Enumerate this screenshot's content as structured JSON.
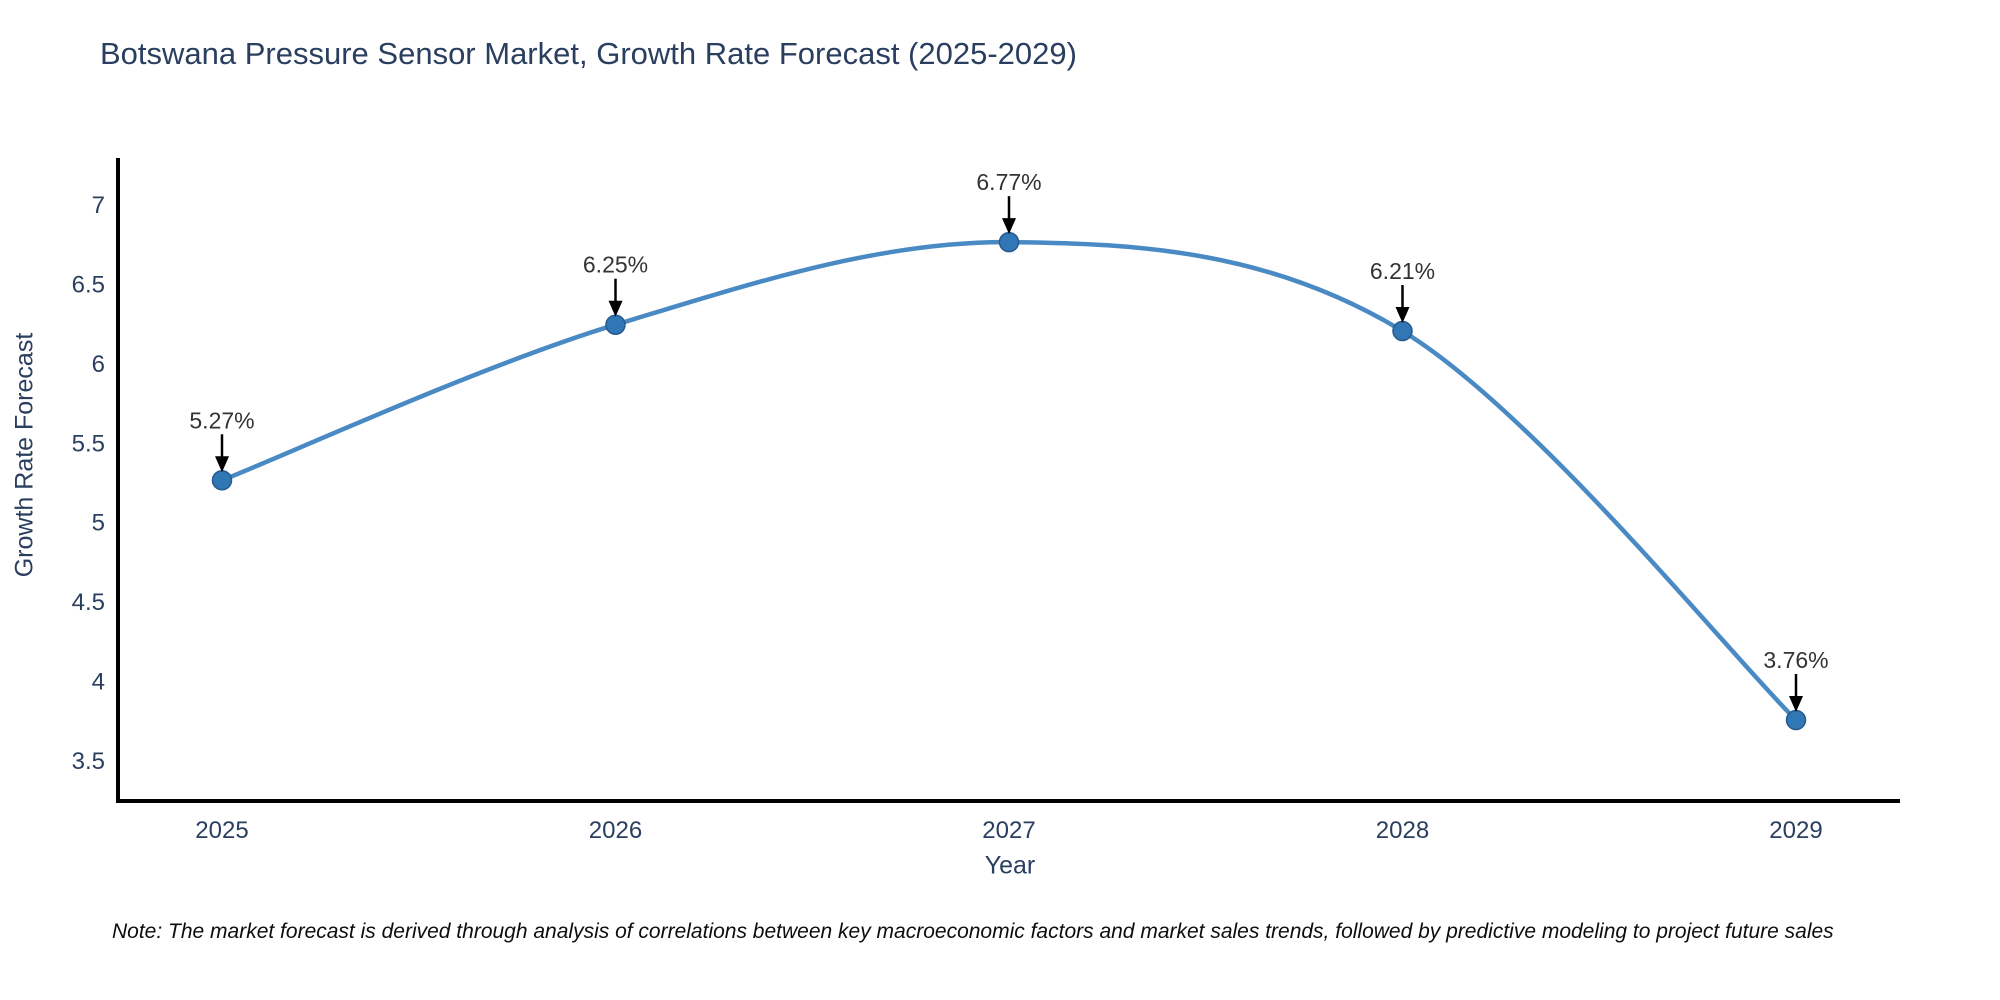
{
  "chart_data": {
    "type": "line",
    "title": "Botswana Pressure Sensor Market, Growth Rate Forecast (2025-2029)",
    "xlabel": "Year",
    "ylabel": "Growth Rate Forecast",
    "x": [
      2025,
      2026,
      2027,
      2028,
      2029
    ],
    "values": [
      5.27,
      6.25,
      6.77,
      6.21,
      3.76
    ],
    "point_labels": [
      "5.27%",
      "6.25%",
      "6.77%",
      "6.21%",
      "3.76%"
    ],
    "yticks": [
      3.5,
      4,
      4.5,
      5,
      5.5,
      6,
      6.5,
      7
    ],
    "ylim": [
      3.25,
      7.3
    ],
    "grid": false,
    "legend": "none",
    "line_shape": "spline",
    "note": "Note: The market forecast is derived through analysis of correlations between key macroeconomic factors and market sales trends, followed by predictive modeling to project future sales",
    "colors": {
      "line": "#4a8ac4",
      "marker": "#3277b5",
      "marker_edge": "#27598c",
      "axis": "#000000",
      "tick_text": "#2a3f5f",
      "annotation_text": "#333333",
      "arrow": "#000000",
      "title_text": "#2a3f5f"
    }
  }
}
